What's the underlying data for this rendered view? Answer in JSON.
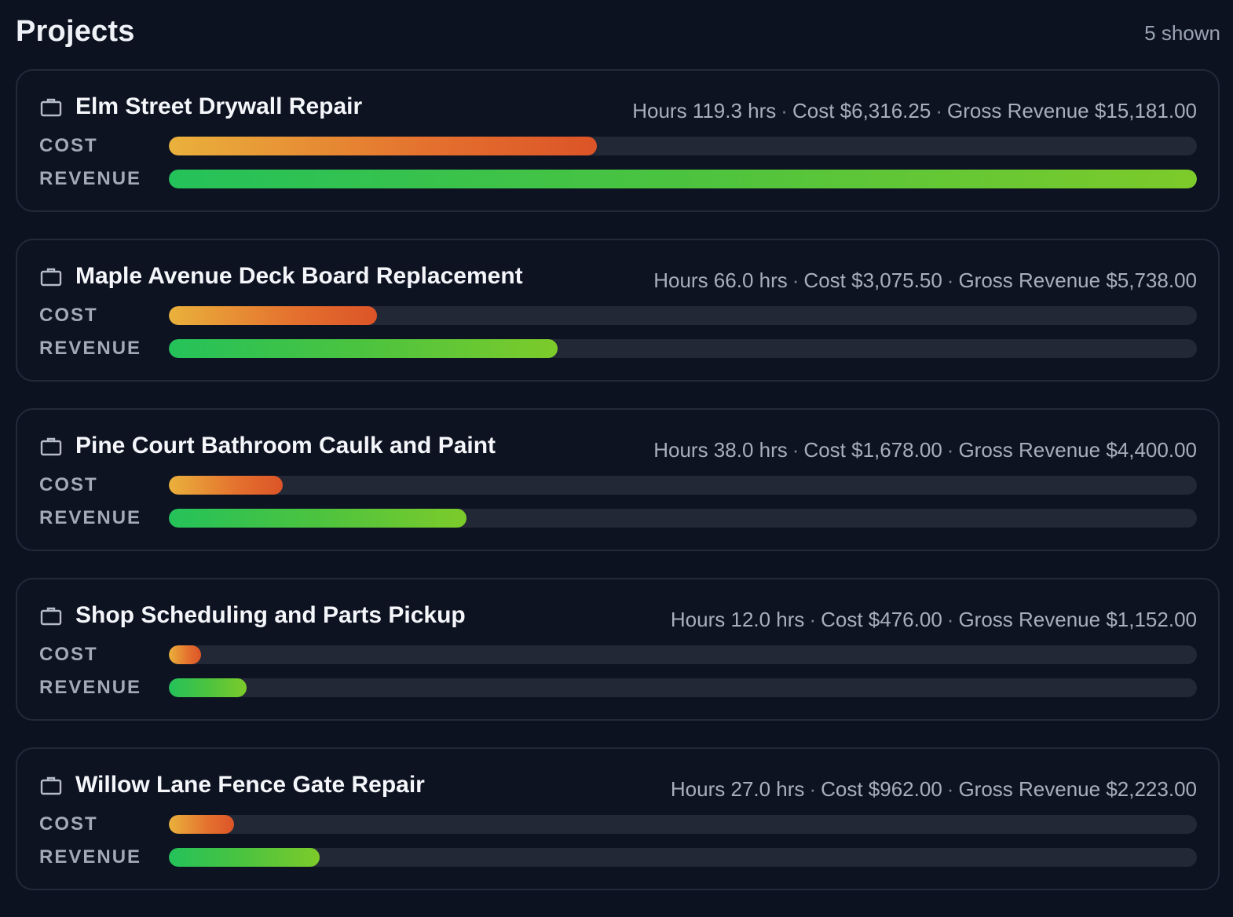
{
  "header": {
    "title": "Projects",
    "shown_count": "5 shown"
  },
  "labels": {
    "cost": "COST",
    "revenue": "REVENUE"
  },
  "icons": {
    "project": "briefcase-icon"
  },
  "colors": {
    "background": "#0d1220",
    "card_border": "#222a3a",
    "track": "#222836",
    "cost_gradient": [
      "#eab13c",
      "#dc5428"
    ],
    "revenue_gradient": [
      "#24c25a",
      "#7dcb2a"
    ]
  },
  "projects": [
    {
      "name": "Elm Street Drywall Repair",
      "hours": "Hours 119.3 hrs",
      "cost": "Cost $6,316.25",
      "revenue": "Gross Revenue $15,181.00",
      "cost_value": 6316.25,
      "revenue_value": 15181.0
    },
    {
      "name": "Maple Avenue Deck Board Replacement",
      "hours": "Hours 66.0 hrs",
      "cost": "Cost $3,075.50",
      "revenue": "Gross Revenue $5,738.00",
      "cost_value": 3075.5,
      "revenue_value": 5738.0
    },
    {
      "name": "Pine Court Bathroom Caulk and Paint",
      "hours": "Hours 38.0 hrs",
      "cost": "Cost $1,678.00",
      "revenue": "Gross Revenue $4,400.00",
      "cost_value": 1678.0,
      "revenue_value": 4400.0
    },
    {
      "name": "Shop Scheduling and Parts Pickup",
      "hours": "Hours 12.0 hrs",
      "cost": "Cost $476.00",
      "revenue": "Gross Revenue $1,152.00",
      "cost_value": 476.0,
      "revenue_value": 1152.0
    },
    {
      "name": "Willow Lane Fence Gate Repair",
      "hours": "Hours 27.0 hrs",
      "cost": "Cost $962.00",
      "revenue": "Gross Revenue $2,223.00",
      "cost_value": 962.0,
      "revenue_value": 2223.0
    }
  ]
}
